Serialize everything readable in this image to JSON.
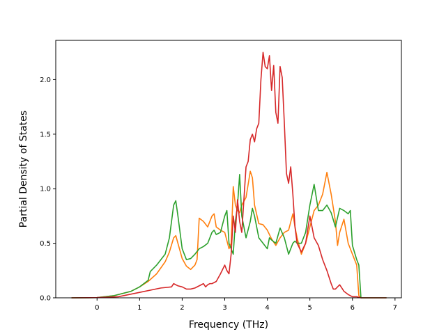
{
  "chart_data": {
    "type": "line",
    "title": "",
    "xlabel": "Frequency (THz)",
    "ylabel": "Partial Density of States",
    "xlim": [
      -0.97,
      7.15
    ],
    "ylim": [
      0,
      2.36
    ],
    "xticks": [
      0,
      1,
      2,
      3,
      4,
      5,
      6,
      7
    ],
    "yticks": [
      0.0,
      0.5,
      1.0,
      1.5,
      2.0
    ],
    "xtick_labels": [
      "0",
      "1",
      "2",
      "3",
      "4",
      "5",
      "6",
      "7"
    ],
    "ytick_labels": [
      "0.0",
      "0.5",
      "1.0",
      "1.5",
      "2.0"
    ],
    "grid": false,
    "series": [
      {
        "color": "#ff7f0e",
        "x": [
          -0.6,
          0,
          0.4,
          0.8,
          1.0,
          1.2,
          1.4,
          1.6,
          1.7,
          1.8,
          1.85,
          1.9,
          2.0,
          2.1,
          2.2,
          2.3,
          2.35,
          2.4,
          2.5,
          2.6,
          2.7,
          2.75,
          2.8,
          2.9,
          3.0,
          3.1,
          3.15,
          3.2,
          3.25,
          3.3,
          3.35,
          3.4,
          3.5,
          3.6,
          3.65,
          3.7,
          3.8,
          3.9,
          4.0,
          4.1,
          4.2,
          4.3,
          4.4,
          4.5,
          4.6,
          4.65,
          4.7,
          4.8,
          4.9,
          5.0,
          5.1,
          5.2,
          5.3,
          5.4,
          5.5,
          5.6,
          5.65,
          5.7,
          5.8,
          5.9,
          6.0,
          6.1,
          6.15,
          6.2,
          6.8
        ],
        "values": [
          0,
          0.002,
          0.02,
          0.06,
          0.1,
          0.15,
          0.22,
          0.33,
          0.42,
          0.55,
          0.57,
          0.5,
          0.36,
          0.29,
          0.26,
          0.3,
          0.35,
          0.73,
          0.7,
          0.65,
          0.75,
          0.77,
          0.65,
          0.62,
          0.6,
          0.45,
          0.5,
          1.02,
          0.85,
          0.8,
          0.78,
          0.85,
          0.92,
          1.16,
          1.1,
          0.85,
          0.68,
          0.67,
          0.62,
          0.54,
          0.48,
          0.55,
          0.6,
          0.62,
          0.77,
          0.65,
          0.55,
          0.4,
          0.5,
          0.65,
          0.8,
          0.85,
          0.95,
          1.15,
          0.95,
          0.7,
          0.48,
          0.6,
          0.72,
          0.5,
          0.4,
          0.3,
          0.02,
          0,
          0
        ]
      },
      {
        "color": "#2ca02c",
        "x": [
          -0.6,
          0,
          0.4,
          0.8,
          1.0,
          1.2,
          1.25,
          1.4,
          1.6,
          1.7,
          1.8,
          1.85,
          1.9,
          2.0,
          2.1,
          2.2,
          2.3,
          2.4,
          2.5,
          2.6,
          2.7,
          2.75,
          2.8,
          2.9,
          3.0,
          3.05,
          3.1,
          3.15,
          3.2,
          3.25,
          3.3,
          3.35,
          3.4,
          3.5,
          3.6,
          3.65,
          3.7,
          3.8,
          3.9,
          4.0,
          4.05,
          4.1,
          4.2,
          4.3,
          4.4,
          4.5,
          4.6,
          4.65,
          4.7,
          4.8,
          4.9,
          5.0,
          5.1,
          5.2,
          5.3,
          5.4,
          5.5,
          5.6,
          5.7,
          5.8,
          5.9,
          5.95,
          6.0,
          6.1,
          6.15,
          6.2,
          6.8
        ],
        "values": [
          0,
          0.002,
          0.02,
          0.06,
          0.1,
          0.16,
          0.24,
          0.3,
          0.4,
          0.55,
          0.85,
          0.89,
          0.75,
          0.45,
          0.35,
          0.36,
          0.4,
          0.45,
          0.47,
          0.5,
          0.6,
          0.62,
          0.58,
          0.6,
          0.75,
          0.8,
          0.5,
          0.45,
          0.4,
          0.7,
          0.85,
          1.13,
          0.75,
          0.55,
          0.7,
          0.82,
          0.75,
          0.55,
          0.5,
          0.45,
          0.55,
          0.53,
          0.5,
          0.64,
          0.55,
          0.4,
          0.5,
          0.52,
          0.5,
          0.5,
          0.6,
          0.85,
          1.04,
          0.8,
          0.8,
          0.85,
          0.78,
          0.65,
          0.82,
          0.8,
          0.77,
          0.8,
          0.48,
          0.35,
          0.3,
          0,
          0
        ]
      },
      {
        "color": "#d62728",
        "x": [
          -0.6,
          0,
          0.5,
          1.0,
          1.5,
          1.75,
          1.8,
          1.9,
          2.0,
          2.1,
          2.2,
          2.3,
          2.4,
          2.5,
          2.55,
          2.6,
          2.65,
          2.7,
          2.8,
          2.9,
          3.0,
          3.05,
          3.1,
          3.15,
          3.2,
          3.25,
          3.3,
          3.35,
          3.4,
          3.5,
          3.55,
          3.6,
          3.65,
          3.7,
          3.75,
          3.8,
          3.85,
          3.9,
          3.95,
          4.0,
          4.05,
          4.1,
          4.15,
          4.2,
          4.25,
          4.3,
          4.35,
          4.4,
          4.45,
          4.5,
          4.55,
          4.6,
          4.65,
          4.7,
          4.8,
          4.9,
          5.0,
          5.1,
          5.2,
          5.3,
          5.4,
          5.5,
          5.55,
          5.6,
          5.7,
          5.8,
          5.9,
          6.0,
          6.1,
          6.2,
          6.8
        ],
        "values": [
          0,
          0.002,
          0.01,
          0.05,
          0.09,
          0.1,
          0.13,
          0.11,
          0.1,
          0.08,
          0.08,
          0.09,
          0.11,
          0.13,
          0.1,
          0.12,
          0.13,
          0.13,
          0.15,
          0.22,
          0.3,
          0.25,
          0.22,
          0.4,
          0.75,
          0.6,
          0.9,
          0.7,
          0.6,
          1.2,
          1.25,
          1.45,
          1.5,
          1.43,
          1.55,
          1.6,
          2.0,
          2.25,
          2.12,
          2.1,
          2.22,
          1.9,
          2.13,
          1.7,
          1.6,
          2.12,
          2.02,
          1.6,
          1.14,
          1.05,
          1.2,
          0.95,
          0.65,
          0.5,
          0.42,
          0.5,
          0.75,
          0.55,
          0.48,
          0.35,
          0.25,
          0.13,
          0.08,
          0.08,
          0.12,
          0.06,
          0.03,
          0.01,
          0.01,
          0,
          0
        ]
      }
    ]
  }
}
